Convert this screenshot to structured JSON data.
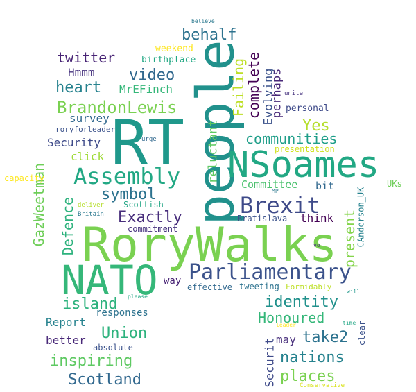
{
  "words": [
    {
      "text": "RoryWalks",
      "color": "#7ad151"
    },
    {
      "text": "people",
      "color": "#21918c"
    },
    {
      "text": "RT",
      "color": "#1f988b"
    },
    {
      "text": "NATO",
      "color": "#35b779"
    },
    {
      "text": "NSoames",
      "color": "#22a884"
    },
    {
      "text": "Parliamentary",
      "color": "#3b528b"
    },
    {
      "text": "Brexit",
      "color": "#3e4a89"
    },
    {
      "text": "Assembly",
      "color": "#22a884"
    },
    {
      "text": "BrandonLewis",
      "color": "#7ad151"
    },
    {
      "text": "GazWeetman",
      "color": "#6ece58"
    },
    {
      "text": "Defence",
      "color": "#2db27d"
    },
    {
      "text": "Failing",
      "color": "#bddf26"
    },
    {
      "text": "complete",
      "color": "#440154"
    },
    {
      "text": "Evolving",
      "color": "#3b528b"
    },
    {
      "text": "perhaps",
      "color": "#482878"
    },
    {
      "text": "behalf",
      "color": "#2c728e"
    },
    {
      "text": "video",
      "color": "#31688e"
    },
    {
      "text": "heart",
      "color": "#26828e"
    },
    {
      "text": "twitter",
      "color": "#482475"
    },
    {
      "text": "Hmmm",
      "color": "#46327e"
    },
    {
      "text": "MrEFinch",
      "color": "#35b779"
    },
    {
      "text": "weekend",
      "color": "#fde725"
    },
    {
      "text": "birthplace",
      "color": "#22a884"
    },
    {
      "text": "believe",
      "color": "#2a788e"
    },
    {
      "text": "survey",
      "color": "#31688e"
    },
    {
      "text": "roryforleader",
      "color": "#3b528b"
    },
    {
      "text": "Security",
      "color": "#3e4a89"
    },
    {
      "text": "click",
      "color": "#a0da39"
    },
    {
      "text": "symbol",
      "color": "#2c728e"
    },
    {
      "text": "Exactly",
      "color": "#472d7b"
    },
    {
      "text": "Scottish",
      "color": "#21a685"
    },
    {
      "text": "Britain",
      "color": "#2a788e"
    },
    {
      "text": "deliver",
      "color": "#b5de2b"
    },
    {
      "text": "commitment",
      "color": "#46327e"
    },
    {
      "text": "reluctant",
      "color": "#5ec962"
    },
    {
      "text": "Yes",
      "color": "#b5de2b"
    },
    {
      "text": "communities",
      "color": "#1f9e89"
    },
    {
      "text": "Committee",
      "color": "#4ac16d"
    },
    {
      "text": "bit",
      "color": "#31688e"
    },
    {
      "text": "present",
      "color": "#84d44b"
    },
    {
      "text": "think",
      "color": "#440154"
    },
    {
      "text": "Bratislava",
      "color": "#3b528b"
    },
    {
      "text": "CAnderson_UK",
      "color": "#26828e"
    },
    {
      "text": "personal",
      "color": "#3e4a89"
    },
    {
      "text": "presentation",
      "color": "#d0e11c"
    },
    {
      "text": "unite",
      "color": "#46327e"
    },
    {
      "text": "urge",
      "color": "#31688e"
    },
    {
      "text": "UKs",
      "color": "#6ece58"
    },
    {
      "text": "MP",
      "color": "#2a788e"
    },
    {
      "text": "capacity",
      "color": "#fde725"
    },
    {
      "text": "vo",
      "color": "#472d7b"
    },
    {
      "text": "way",
      "color": "#482475"
    },
    {
      "text": "effective",
      "color": "#31688e"
    },
    {
      "text": "tweeting",
      "color": "#2c728e"
    },
    {
      "text": "Formidably",
      "color": "#bddf26"
    },
    {
      "text": "will",
      "color": "#1f988b"
    },
    {
      "text": "please",
      "color": "#22a884"
    },
    {
      "text": "island",
      "color": "#2db27d"
    },
    {
      "text": "identity",
      "color": "#21918c"
    },
    {
      "text": "Honoured",
      "color": "#35b779"
    },
    {
      "text": "Report",
      "color": "#26828e"
    },
    {
      "text": "responses",
      "color": "#2c728e"
    },
    {
      "text": "Union",
      "color": "#2db27d"
    },
    {
      "text": "better",
      "color": "#482878"
    },
    {
      "text": "absolute",
      "color": "#3b528b"
    },
    {
      "text": "inspiring",
      "color": "#5ec962"
    },
    {
      "text": "Scotland",
      "color": "#31688e"
    },
    {
      "text": "Securit",
      "color": "#3e4a89"
    },
    {
      "text": "may",
      "color": "#472d7b"
    },
    {
      "text": "take2",
      "color": "#2c728e"
    },
    {
      "text": "leader",
      "color": "#fde725"
    },
    {
      "text": "time",
      "color": "#21a685"
    },
    {
      "text": "clear",
      "color": "#3b528b"
    },
    {
      "text": "nations",
      "color": "#26828e"
    },
    {
      "text": "places",
      "color": "#7ad151"
    },
    {
      "text": "Conservative",
      "color": "#d8e219"
    }
  ]
}
